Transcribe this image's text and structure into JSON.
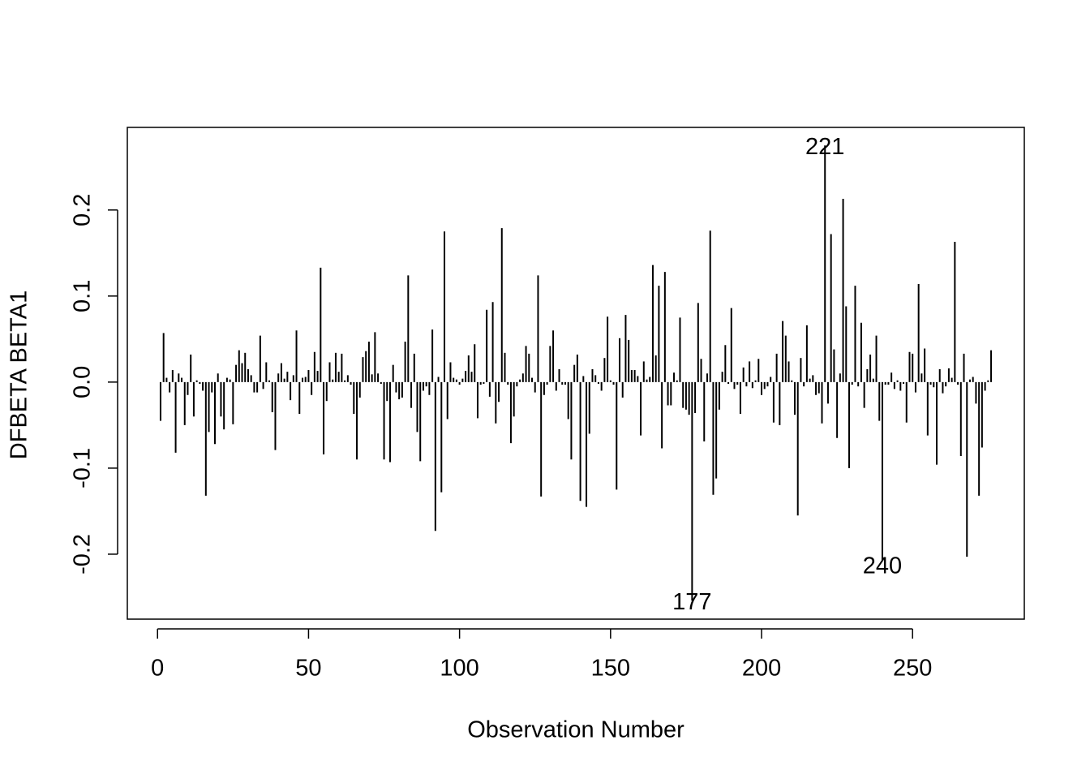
{
  "chart_data": {
    "type": "bar",
    "x_label": "Observation Number",
    "y_label": "DFBETA BETA1",
    "color": "#000000",
    "xlim": [
      -10,
      287
    ],
    "ylim": [
      -0.2755,
      0.296
    ],
    "xticks": [
      0,
      50,
      100,
      150,
      200,
      250
    ],
    "yticks": [
      -0.2,
      -0.1,
      {
        "value": 0,
        "label": "0.0"
      },
      0.1,
      0.2
    ],
    "grid": false,
    "x": [
      1,
      2,
      3,
      4,
      5,
      6,
      7,
      8,
      9,
      10,
      11,
      12,
      13,
      14,
      15,
      16,
      17,
      18,
      19,
      20,
      21,
      22,
      23,
      24,
      25,
      26,
      27,
      28,
      29,
      30,
      31,
      32,
      33,
      34,
      35,
      36,
      37,
      38,
      39,
      40,
      41,
      42,
      43,
      44,
      45,
      46,
      47,
      48,
      49,
      50,
      51,
      52,
      53,
      54,
      55,
      56,
      57,
      58,
      59,
      60,
      61,
      62,
      63,
      64,
      65,
      66,
      67,
      68,
      69,
      70,
      71,
      72,
      73,
      74,
      75,
      76,
      77,
      78,
      79,
      80,
      81,
      82,
      83,
      84,
      85,
      86,
      87,
      88,
      89,
      90,
      91,
      92,
      93,
      94,
      95,
      96,
      97,
      98,
      99,
      100,
      101,
      102,
      103,
      104,
      105,
      106,
      107,
      108,
      109,
      110,
      111,
      112,
      113,
      114,
      115,
      116,
      117,
      118,
      119,
      120,
      121,
      122,
      123,
      124,
      125,
      126,
      127,
      128,
      129,
      130,
      131,
      132,
      133,
      134,
      135,
      136,
      137,
      138,
      139,
      140,
      141,
      142,
      143,
      144,
      145,
      146,
      147,
      148,
      149,
      150,
      151,
      152,
      153,
      154,
      155,
      156,
      157,
      158,
      159,
      160,
      161,
      162,
      163,
      164,
      165,
      166,
      167,
      168,
      169,
      170,
      171,
      172,
      173,
      174,
      175,
      176,
      177,
      178,
      179,
      180,
      181,
      182,
      183,
      184,
      185,
      186,
      187,
      188,
      189,
      190,
      191,
      192,
      193,
      194,
      195,
      196,
      197,
      198,
      199,
      200,
      201,
      202,
      203,
      204,
      205,
      206,
      207,
      208,
      209,
      210,
      211,
      212,
      213,
      214,
      215,
      216,
      217,
      218,
      219,
      220,
      221,
      222,
      223,
      224,
      225,
      226,
      227,
      228,
      229,
      230,
      231,
      232,
      233,
      234,
      235,
      236,
      237,
      238,
      239,
      240,
      241,
      242,
      243,
      244,
      245,
      246,
      247,
      248,
      249,
      250,
      251,
      252,
      253,
      254,
      255,
      256,
      257,
      258,
      259,
      260,
      261,
      262,
      263,
      264,
      265,
      266,
      267,
      268,
      269,
      270,
      271,
      272,
      273,
      274,
      275,
      276
    ],
    "values": [
      -0.045,
      0.057,
      0.005,
      -0.012,
      0.014,
      -0.082,
      0.01,
      0.005,
      -0.05,
      -0.015,
      0.032,
      -0.04,
      0.002,
      -0.002,
      -0.01,
      -0.132,
      -0.058,
      -0.012,
      -0.072,
      0.01,
      -0.04,
      -0.055,
      0.005,
      0.003,
      -0.049,
      0.02,
      0.037,
      0.022,
      0.034,
      0.015,
      0.008,
      -0.012,
      -0.012,
      0.054,
      -0.008,
      0.023,
      0.002,
      -0.035,
      -0.079,
      0.01,
      0.022,
      0.004,
      0.012,
      -0.021,
      0.008,
      0.06,
      -0.037,
      0.005,
      0.006,
      0.014,
      -0.015,
      0.035,
      0.013,
      0.133,
      -0.084,
      -0.022,
      0.023,
      0.003,
      0.034,
      0.012,
      0.033,
      0.002,
      0.008,
      -0.003,
      -0.037,
      -0.09,
      -0.018,
      0.029,
      0.036,
      0.047,
      0.009,
      0.058,
      0.01,
      -0.002,
      -0.09,
      -0.022,
      -0.093,
      0.02,
      -0.012,
      -0.02,
      -0.018,
      0.047,
      0.124,
      -0.03,
      0.033,
      -0.058,
      -0.092,
      -0.01,
      -0.005,
      -0.015,
      0.061,
      -0.173,
      0.006,
      -0.128,
      0.175,
      -0.043,
      0.023,
      0.005,
      0.003,
      -0.003,
      0.004,
      0.013,
      0.031,
      0.012,
      0.044,
      -0.042,
      -0.003,
      -0.002,
      0.084,
      -0.017,
      0.093,
      -0.048,
      -0.023,
      0.179,
      0.034,
      -0.003,
      -0.071,
      -0.04,
      -0.005,
      0.003,
      0.01,
      0.042,
      0.033,
      0.005,
      -0.012,
      0.124,
      -0.133,
      -0.015,
      -0.003,
      0.042,
      0.06,
      -0.01,
      0.015,
      -0.003,
      -0.003,
      -0.043,
      -0.09,
      0.02,
      0.032,
      -0.138,
      0.007,
      -0.145,
      -0.06,
      0.015,
      0.008,
      -0.002,
      -0.01,
      0.028,
      0.076,
      0.002,
      -0.003,
      -0.125,
      0.051,
      -0.018,
      0.078,
      0.049,
      0.014,
      0.014,
      0.007,
      -0.062,
      0.024,
      0.003,
      0.006,
      0.136,
      0.031,
      0.112,
      -0.077,
      0.128,
      -0.027,
      -0.027,
      0.011,
      0.002,
      0.075,
      -0.03,
      -0.032,
      -0.038,
      -0.254,
      -0.036,
      0.092,
      0.027,
      -0.069,
      0.01,
      0.176,
      -0.131,
      -0.112,
      -0.032,
      0.012,
      0.043,
      -0.002,
      0.086,
      -0.008,
      -0.003,
      -0.037,
      0.017,
      -0.005,
      0.024,
      -0.007,
      0.002,
      0.027,
      -0.015,
      -0.008,
      -0.005,
      0.006,
      -0.047,
      0.033,
      -0.05,
      0.071,
      0.054,
      0.024,
      0.002,
      -0.038,
      -0.155,
      0.028,
      -0.005,
      0.066,
      0.004,
      0.008,
      -0.015,
      -0.013,
      -0.048,
      0.275,
      -0.025,
      0.172,
      0.038,
      -0.065,
      0.01,
      0.213,
      0.088,
      -0.1,
      -0.003,
      0.112,
      -0.005,
      0.069,
      -0.03,
      0.015,
      0.032,
      0.004,
      0.054,
      -0.045,
      -0.207,
      -0.003,
      -0.003,
      0.011,
      -0.008,
      0.002,
      -0.01,
      -0.002,
      -0.047,
      0.035,
      0.033,
      -0.012,
      0.114,
      0.01,
      0.039,
      -0.062,
      -0.003,
      -0.006,
      -0.096,
      0.015,
      -0.013,
      -0.005,
      0.016,
      0.005,
      0.163,
      -0.003,
      -0.086,
      0.033,
      -0.203,
      0.003,
      0.006,
      -0.025,
      -0.132,
      -0.076,
      -0.01,
      0.002,
      0.037
    ],
    "annotations": [
      {
        "text": "221",
        "x": 221,
        "y": 0.272
      },
      {
        "text": "177",
        "x": 177,
        "y": -0.257
      },
      {
        "text": "240",
        "x": 240,
        "y": -0.215
      }
    ]
  }
}
